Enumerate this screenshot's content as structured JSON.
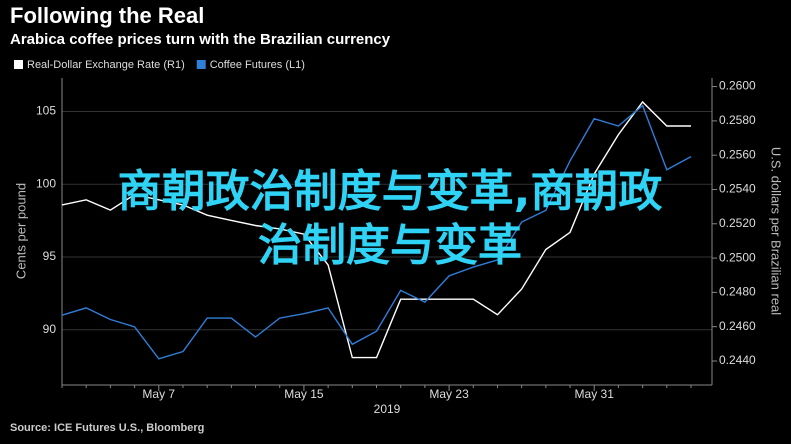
{
  "chart_data": {
    "type": "line",
    "title": "Following the Real",
    "subtitle": "Arabica coffee prices turn with the Brazilian currency",
    "y_label": "Cents per pound",
    "y2_label": "U.S. dollars per Brazilian real",
    "x_label": "2019",
    "source": "Source: ICE Futures U.S., Bloomberg",
    "overlay_text": [
      "商朝政治制度与变革,商朝政",
      "治制度与变革"
    ],
    "categories": [
      null,
      null,
      null,
      null,
      "May 7",
      null,
      null,
      null,
      null,
      null,
      "May 15",
      null,
      null,
      null,
      null,
      null,
      "May 23",
      null,
      null,
      null,
      null,
      null,
      "May 31",
      null,
      null,
      null,
      null
    ],
    "series": [
      {
        "name": "Real-Dollar Exchange Rate (R1)",
        "color": "#ffffff",
        "axis": "y2",
        "values": [
          0.2531,
          0.2534,
          0.2528,
          0.2537,
          0.2534,
          0.2531,
          0.2525,
          0.2522,
          0.2519,
          0.2517,
          0.2514,
          0.2496,
          0.2442,
          0.2442,
          0.2476,
          0.2476,
          0.2476,
          0.2476,
          0.2467,
          0.2482,
          0.2505,
          0.2515,
          0.2549,
          0.2572,
          0.2591,
          0.2577,
          0.2577
        ]
      },
      {
        "name": "Coffee Futures (L1)",
        "color": "#2f7ed8",
        "values": [
          91.0,
          91.5,
          90.7,
          90.2,
          88.0,
          88.5,
          90.8,
          90.8,
          89.5,
          90.8,
          91.1,
          91.5,
          89.0,
          89.9,
          92.7,
          91.9,
          93.7,
          94.3,
          94.8,
          97.4,
          98.2,
          101.6,
          104.5,
          104.0,
          105.4,
          101.0,
          101.9
        ]
      }
    ],
    "ylim": [
      86.2,
      107.3
    ],
    "yticks": [
      90,
      95,
      100,
      105
    ],
    "y2lim": [
      0.2426,
      0.2605
    ],
    "y2ticks": [
      {
        "value": 0.244,
        "label": "0.2440"
      },
      {
        "value": 0.246,
        "label": "0.2460"
      },
      {
        "value": 0.248,
        "label": "0.2480"
      },
      {
        "value": 0.25,
        "label": "0.2500"
      },
      {
        "value": 0.252,
        "label": "0.2520"
      },
      {
        "value": 0.254,
        "label": "0.2540"
      },
      {
        "value": 0.256,
        "label": "0.2560"
      },
      {
        "value": 0.258,
        "label": "0.2580"
      },
      {
        "value": 0.26,
        "label": "0.2600"
      }
    ],
    "grid": true
  }
}
